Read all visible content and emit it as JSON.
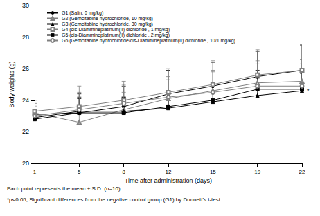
{
  "chart_data": {
    "type": "line",
    "x_label": "Time after administration (days)",
    "y_label": "Body weights (g)",
    "categories": [
      "1",
      "5",
      "8",
      "12",
      "15",
      "19",
      "22"
    ],
    "ylim": [
      20,
      30
    ],
    "yticks": [
      20,
      22,
      24,
      26,
      28,
      30
    ],
    "grid": false,
    "legend": "top-left",
    "series": [
      {
        "name": "G1 (Salin, 0 mg/kg)",
        "color": "#000000",
        "marker": "filled_circle",
        "values": [
          23.1,
          23.2,
          23.6,
          24.4,
          24.9,
          25.5,
          25.9
        ],
        "sd": [
          0.6,
          1.2,
          1.3,
          1.5,
          1.5,
          1.6,
          1.6
        ]
      },
      {
        "name": "G2 (Gemcitabine hydrochloride, 10 mg/kg)",
        "color": "#808080",
        "marker": "open_triangle",
        "values": [
          23.2,
          22.6,
          23.4,
          24.1,
          24.6,
          25.1,
          25.2
        ],
        "sd": [
          0.6,
          1.0,
          1.1,
          1.2,
          1.3,
          1.4,
          1.4
        ]
      },
      {
        "name": "G3 (Gemcitabine hydrochloride, 30 mg/kg)",
        "color": "#000000",
        "marker": "filled_triangle",
        "values": [
          22.9,
          23.3,
          23.3,
          23.5,
          23.9,
          24.3,
          24.6
        ],
        "sd": [
          0.5,
          0.9,
          0.9,
          1.0,
          1.0,
          1.1,
          1.1
        ]
      },
      {
        "name": "G4 (cis-Diammineplatinum(II) dichloride , 1 mg/kg)",
        "color": "#808080",
        "marker": "open_square",
        "values": [
          23.3,
          23.6,
          24.0,
          24.5,
          25.0,
          25.6,
          25.9
        ],
        "sd": [
          0.7,
          1.3,
          1.2,
          1.5,
          1.5,
          1.6,
          1.6
        ]
      },
      {
        "name": "G5 (cis-Diammineplatinum(II) dichloride , 2 mg/kg)",
        "color": "#000000",
        "marker": "filled_square",
        "values": [
          22.8,
          23.2,
          23.2,
          23.6,
          24.0,
          24.7,
          24.7
        ],
        "sd": [
          0.5,
          0.9,
          1.0,
          1.0,
          1.1,
          1.2,
          1.2
        ]
      },
      {
        "name": "G6 (Gemcitabine hydrochloride/cis-Diammineplatinum(II) dichloride , 10/1 mg/kg)",
        "color": "#808080",
        "marker": "open_circle",
        "values": [
          23.0,
          23.4,
          23.8,
          24.2,
          24.5,
          24.9,
          24.9
        ],
        "sd": [
          0.6,
          1.1,
          1.2,
          1.3,
          1.3,
          1.4,
          1.4
        ]
      }
    ],
    "annotations": [
      {
        "text": "*",
        "x": "22",
        "y": 24.6
      }
    ],
    "notes": [
      "Each point represents the mean + S.D. (n=10)",
      "*p<0.05, Significant differences from the negative control group (G1) by Dunnett's t-test"
    ]
  }
}
